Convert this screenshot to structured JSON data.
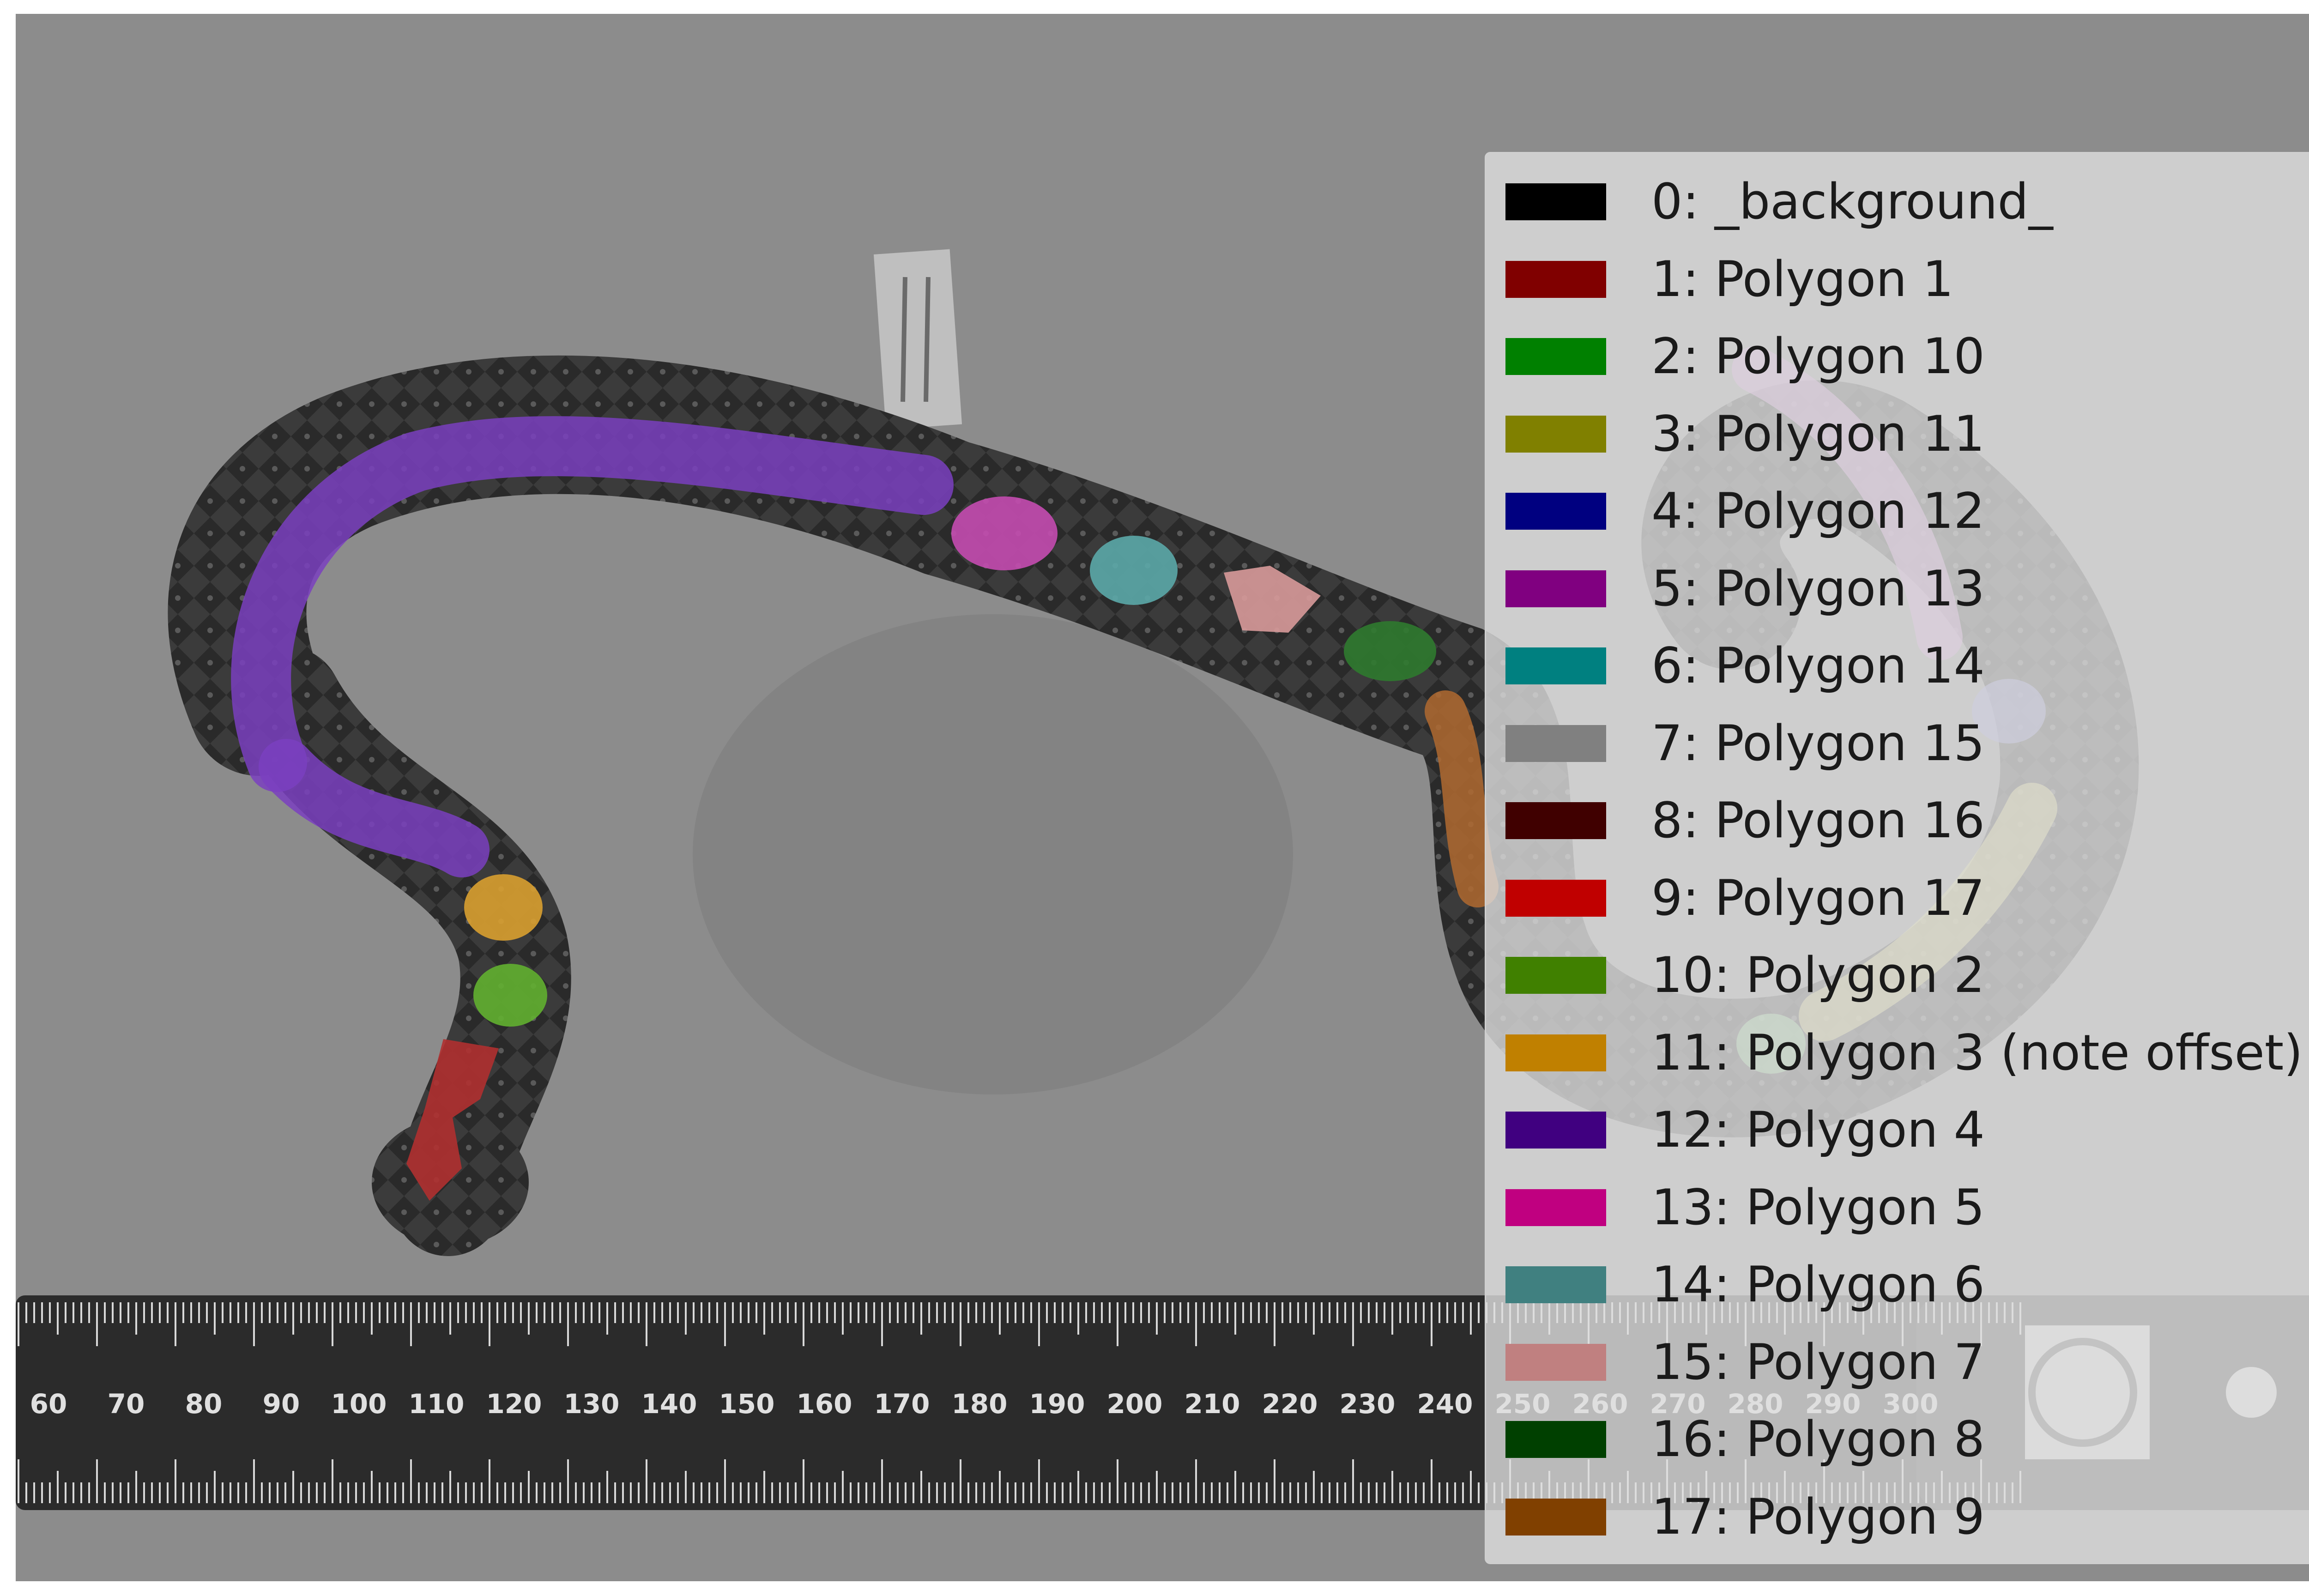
{
  "ruler": {
    "tick_labels": [
      "60",
      "70",
      "80",
      "90",
      "100",
      "110",
      "120",
      "130",
      "140",
      "150",
      "160",
      "170",
      "180",
      "190",
      "200",
      "210",
      "220",
      "230",
      "240",
      "250",
      "260",
      "270",
      "280",
      "290",
      "300"
    ]
  },
  "legend": {
    "items": [
      {
        "label": "0: _background_",
        "color": "#000000"
      },
      {
        "label": "1: Polygon 1",
        "color": "#800000"
      },
      {
        "label": "2: Polygon 10",
        "color": "#008000"
      },
      {
        "label": "3: Polygon 11",
        "color": "#808000"
      },
      {
        "label": "4: Polygon 12",
        "color": "#000080"
      },
      {
        "label": "5: Polygon 13",
        "color": "#800080"
      },
      {
        "label": "6: Polygon 14",
        "color": "#008080"
      },
      {
        "label": "7: Polygon 15",
        "color": "#808080"
      },
      {
        "label": "8: Polygon 16",
        "color": "#400000"
      },
      {
        "label": "9: Polygon 17",
        "color": "#c00000"
      },
      {
        "label": "10: Polygon 2",
        "color": "#408000"
      },
      {
        "label": "11: Polygon 3 (note offset)",
        "color": "#c08000"
      },
      {
        "label": "12: Polygon 4",
        "color": "#400080"
      },
      {
        "label": "13: Polygon 5",
        "color": "#c00080"
      },
      {
        "label": "14: Polygon 6",
        "color": "#408080"
      },
      {
        "label": "15: Polygon 7",
        "color": "#c08080"
      },
      {
        "label": "16: Polygon 8",
        "color": "#004000"
      },
      {
        "label": "17: Polygon 9",
        "color": "#804000"
      }
    ]
  }
}
